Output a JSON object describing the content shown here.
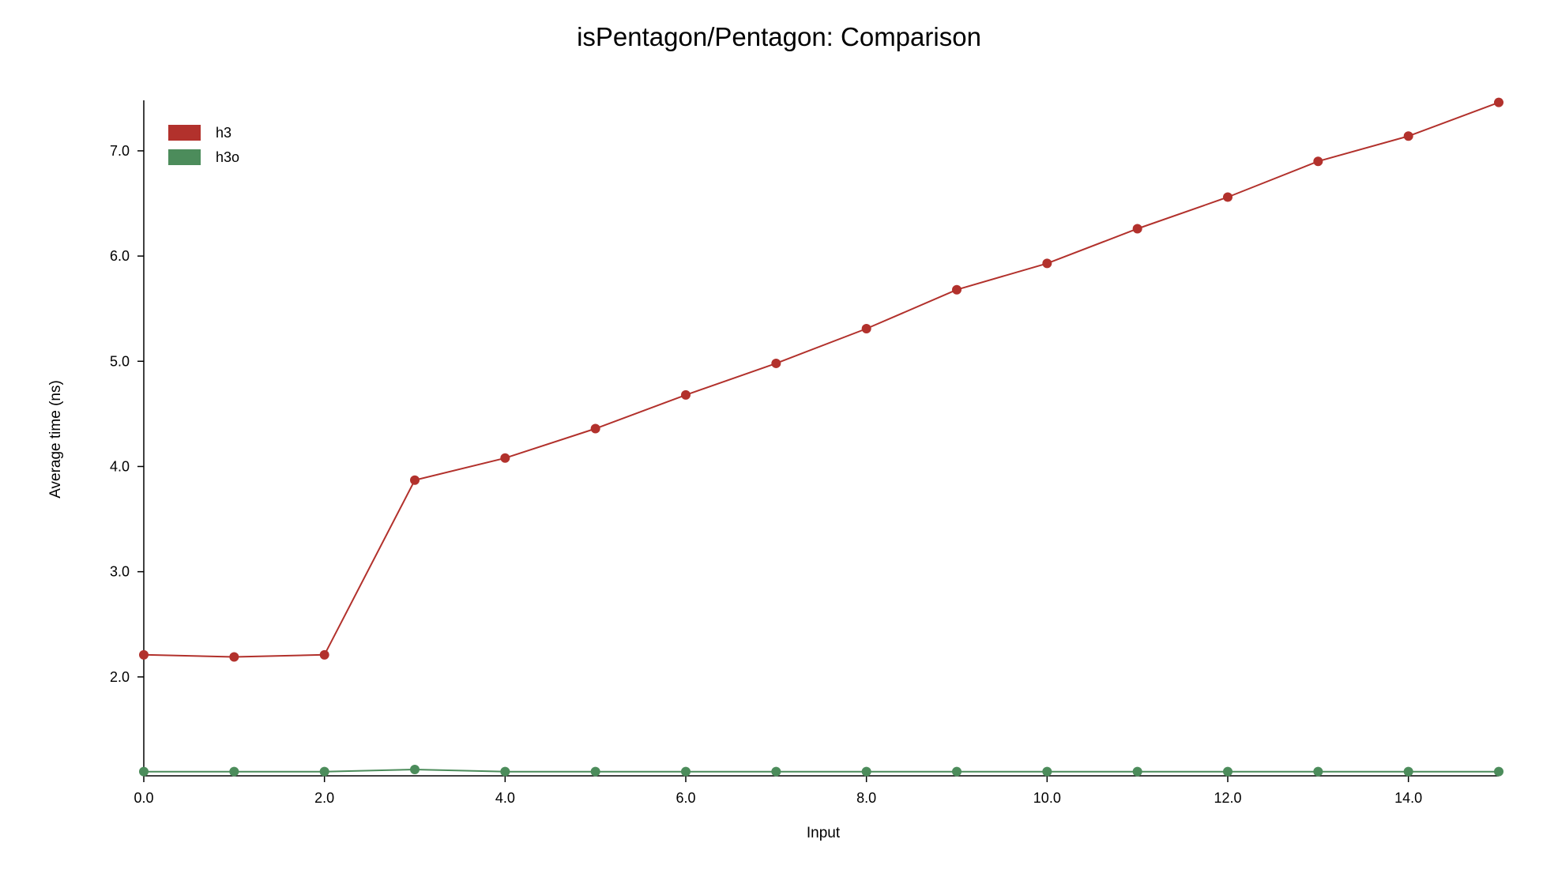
{
  "chart_data": {
    "type": "line",
    "title": "isPentagon/Pentagon: Comparison",
    "xlabel": "Input",
    "ylabel": "Average time (ns)",
    "xlim": [
      0,
      15
    ],
    "ylim": [
      1.06,
      7.48
    ],
    "x_ticks": [
      0,
      2,
      4,
      6,
      8,
      10,
      12,
      14
    ],
    "x_tick_labels": [
      "0.0",
      "2.0",
      "4.0",
      "6.0",
      "8.0",
      "10.0",
      "12.0",
      "14.0"
    ],
    "y_ticks": [
      2,
      3,
      4,
      5,
      6,
      7
    ],
    "y_tick_labels": [
      "2.0",
      "3.0",
      "4.0",
      "5.0",
      "6.0",
      "7.0"
    ],
    "grid": false,
    "legend_position": "top-left",
    "x": [
      0,
      1,
      2,
      3,
      4,
      5,
      6,
      7,
      8,
      9,
      10,
      11,
      12,
      13,
      14,
      15
    ],
    "series": [
      {
        "name": "h3",
        "color": "#b2312c",
        "values": [
          2.21,
          2.19,
          2.21,
          3.87,
          4.08,
          4.36,
          4.68,
          4.98,
          5.31,
          5.68,
          5.93,
          6.26,
          6.56,
          6.9,
          7.14,
          7.46
        ]
      },
      {
        "name": "h3o",
        "color": "#4c8c5b",
        "values": [
          1.1,
          1.1,
          1.1,
          1.12,
          1.1,
          1.1,
          1.1,
          1.1,
          1.1,
          1.1,
          1.1,
          1.1,
          1.1,
          1.1,
          1.1,
          1.1
        ]
      }
    ]
  }
}
